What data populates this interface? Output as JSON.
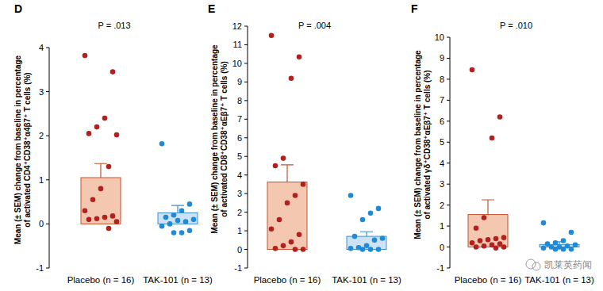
{
  "chart_data": [
    {
      "type": "bar",
      "panel_label": "D",
      "title": "P = .013",
      "ylabel": "Mean (± SEM) change from baseline in percentage\nof activated CD4⁺CD38⁺α4β7⁺ T cells (%)",
      "categories": [
        "Placebo (n = 16)",
        "TAK-101 (n = 13)"
      ],
      "values": [
        1.05,
        0.25
      ],
      "errors": [
        0.32,
        0.17
      ],
      "colors": [
        "#f3c7b0",
        "#cde2f4"
      ],
      "points": [
        [
          3.82,
          3.45,
          2.4,
          2.2,
          2.05,
          2.02,
          1.3,
          0.8,
          0.55,
          0.3,
          0.18,
          0.15,
          0.12,
          0.1,
          0.05,
          -0.1
        ],
        [
          1.82,
          0.45,
          0.3,
          0.2,
          0.15,
          0.1,
          0.05,
          0.08,
          0.0,
          -0.05,
          -0.15,
          -0.2,
          -0.2
        ]
      ],
      "ylim": [
        -1,
        4
      ],
      "yticks": [
        -1,
        0,
        1,
        2,
        3,
        4
      ]
    },
    {
      "type": "bar",
      "panel_label": "E",
      "title": "P = .004",
      "ylabel": "Mean (± SEM) change from baseline in percentage\nof activated CD8⁺CD38⁺αEβ7⁺ T cells (%)",
      "categories": [
        "Placebo (n = 16)",
        "TAK-101 (n = 13)"
      ],
      "values": [
        3.62,
        0.7
      ],
      "errors": [
        0.93,
        0.25
      ],
      "colors": [
        "#f3c7b0",
        "#cde2f4"
      ],
      "points": [
        [
          11.5,
          10.35,
          9.2,
          4.9,
          4.5,
          3.5,
          2.9,
          2.5,
          1.6,
          1.1,
          0.8,
          0.4,
          0.2,
          0.05,
          0.0,
          0.0
        ],
        [
          2.9,
          2.2,
          1.95,
          1.6,
          0.7,
          0.6,
          0.5,
          0.2,
          0.1,
          0.05,
          0.0,
          0.0,
          0.0
        ]
      ],
      "ylim": [
        -1,
        12
      ],
      "yticks": [
        -1,
        0,
        1,
        2,
        3,
        4,
        5,
        6,
        7,
        8,
        9,
        10,
        11,
        12
      ]
    },
    {
      "type": "bar",
      "panel_label": "F",
      "title": "P = .010",
      "ylabel": "Mean (± SEM) change from baseline in percentage\nof activated γδ⁺CD38⁺αEβ7⁺ T cells (%)",
      "categories": [
        "Placebo (n = 16)",
        "TAK-101 (n = 13)"
      ],
      "values": [
        1.55,
        0.12
      ],
      "errors": [
        0.7,
        0.13
      ],
      "colors": [
        "#f3c7b0",
        "#cde2f4"
      ],
      "points": [
        [
          8.45,
          6.2,
          5.2,
          1.4,
          0.9,
          0.45,
          0.4,
          0.35,
          0.3,
          0.2,
          0.15,
          0.1,
          0.05,
          0.0,
          0.0,
          -0.05
        ],
        [
          1.15,
          0.7,
          0.3,
          0.2,
          0.15,
          0.1,
          0.05,
          0.0,
          0.0,
          -0.05,
          -0.1,
          -0.1,
          -0.1
        ]
      ],
      "ylim": [
        -1,
        10
      ],
      "yticks": [
        -1,
        0,
        1,
        2,
        3,
        4,
        5,
        6,
        7,
        8,
        9,
        10
      ],
      "annotation": "凯莱英药闻"
    }
  ]
}
